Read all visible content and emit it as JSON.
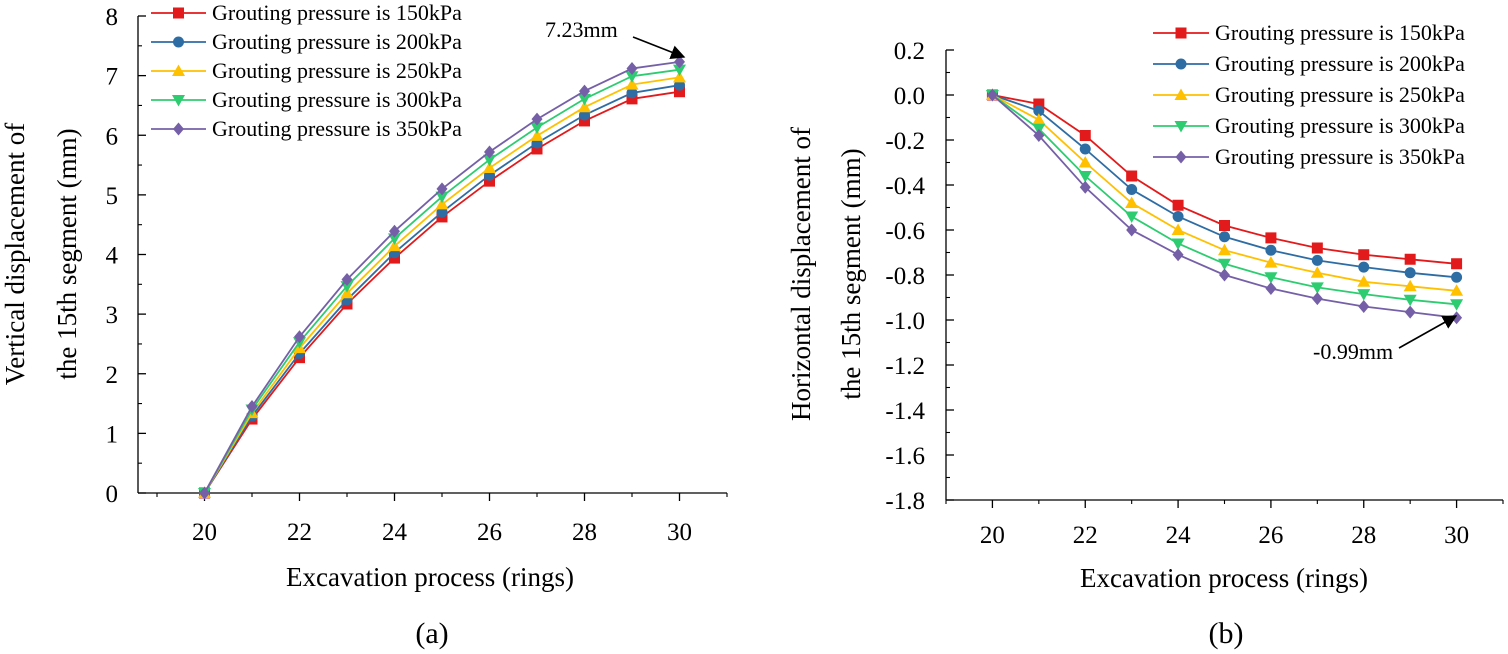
{
  "colors": {
    "series": [
      "#e31a1c",
      "#2e6da4",
      "#ffc000",
      "#2ecc71",
      "#7560a8"
    ],
    "axis": "#000000"
  },
  "chart_data": [
    {
      "type": "line",
      "panel_label": "(a)",
      "xlabel": "Excavation process (rings)",
      "ylabel": [
        "Vertical displacement of",
        "the 15th segment (mm)"
      ],
      "xlim": [
        18.6,
        31
      ],
      "ylim": [
        0,
        8
      ],
      "xticks": [
        20,
        22,
        24,
        26,
        28,
        30
      ],
      "yticks": [
        0,
        1,
        2,
        3,
        4,
        5,
        6,
        7,
        8
      ],
      "ytick_labels": [
        "0",
        "1",
        "2",
        "3",
        "4",
        "5",
        "6",
        "7",
        "8"
      ],
      "legend_position": "top-left",
      "x": [
        20,
        21,
        22,
        23,
        24,
        25,
        26,
        27,
        28,
        29,
        30
      ],
      "series": [
        {
          "name": "Grouting pressure is 150kPa",
          "marker": "square",
          "values": [
            0,
            1.24,
            2.27,
            3.17,
            3.94,
            4.63,
            5.23,
            5.77,
            6.24,
            6.61,
            6.73
          ]
        },
        {
          "name": "Grouting pressure is 200kPa",
          "marker": "circle",
          "values": [
            0,
            1.29,
            2.34,
            3.24,
            4.03,
            4.71,
            5.33,
            5.87,
            6.34,
            6.71,
            6.84
          ]
        },
        {
          "name": "Grouting pressure is 250kPa",
          "marker": "triangle-up",
          "values": [
            0,
            1.34,
            2.43,
            3.35,
            4.14,
            4.84,
            5.45,
            5.99,
            6.47,
            6.85,
            6.97
          ]
        },
        {
          "name": "Grouting pressure is 300kPa",
          "marker": "triangle-down",
          "values": [
            0,
            1.4,
            2.53,
            3.47,
            4.27,
            4.97,
            5.59,
            6.13,
            6.61,
            6.99,
            7.1
          ]
        },
        {
          "name": "Grouting pressure is 350kPa",
          "marker": "diamond",
          "values": [
            0,
            1.45,
            2.62,
            3.58,
            4.39,
            5.1,
            5.72,
            6.27,
            6.74,
            7.12,
            7.23
          ]
        }
      ],
      "annotation": {
        "text": "7.23mm",
        "x": 30,
        "y": 7.23
      }
    },
    {
      "type": "line",
      "panel_label": "(b)",
      "xlabel": "Excavation process (rings)",
      "ylabel": [
        "Horizontal displacement of",
        "the 15th segment (mm)"
      ],
      "xlim": [
        19,
        31
      ],
      "ylim": [
        -1.8,
        0.2
      ],
      "xticks": [
        20,
        22,
        24,
        26,
        28,
        30
      ],
      "yticks": [
        -1.8,
        -1.6,
        -1.4,
        -1.2,
        -1.0,
        -0.8,
        -0.6,
        -0.4,
        -0.2,
        0.0,
        0.2
      ],
      "ytick_labels": [
        "-1.8",
        "-1.6",
        "-1.4",
        "-1.2",
        "-1.0",
        "-0.8",
        "-0.6",
        "-0.4",
        "-0.2",
        "0.0",
        "0.2"
      ],
      "legend_position": "top-right",
      "x": [
        20,
        21,
        22,
        23,
        24,
        25,
        26,
        27,
        28,
        29,
        30
      ],
      "series": [
        {
          "name": "Grouting pressure is 150kPa",
          "marker": "square",
          "values": [
            0,
            -0.04,
            -0.18,
            -0.36,
            -0.49,
            -0.58,
            -0.635,
            -0.68,
            -0.71,
            -0.73,
            -0.75
          ]
        },
        {
          "name": "Grouting pressure is 200kPa",
          "marker": "circle",
          "values": [
            0,
            -0.07,
            -0.24,
            -0.42,
            -0.54,
            -0.63,
            -0.69,
            -0.735,
            -0.765,
            -0.79,
            -0.81
          ]
        },
        {
          "name": "Grouting pressure is 250kPa",
          "marker": "triangle-up",
          "values": [
            0,
            -0.11,
            -0.3,
            -0.48,
            -0.6,
            -0.69,
            -0.745,
            -0.79,
            -0.83,
            -0.85,
            -0.87
          ]
        },
        {
          "name": "Grouting pressure is 300kPa",
          "marker": "triangle-down",
          "values": [
            0,
            -0.15,
            -0.36,
            -0.54,
            -0.66,
            -0.75,
            -0.81,
            -0.855,
            -0.885,
            -0.91,
            -0.93
          ]
        },
        {
          "name": "Grouting pressure is 350kPa",
          "marker": "diamond",
          "values": [
            0,
            -0.18,
            -0.41,
            -0.6,
            -0.71,
            -0.8,
            -0.86,
            -0.905,
            -0.94,
            -0.965,
            -0.99
          ]
        }
      ],
      "annotation": {
        "text": "-0.99mm",
        "x": 30,
        "y": -0.99
      }
    }
  ]
}
